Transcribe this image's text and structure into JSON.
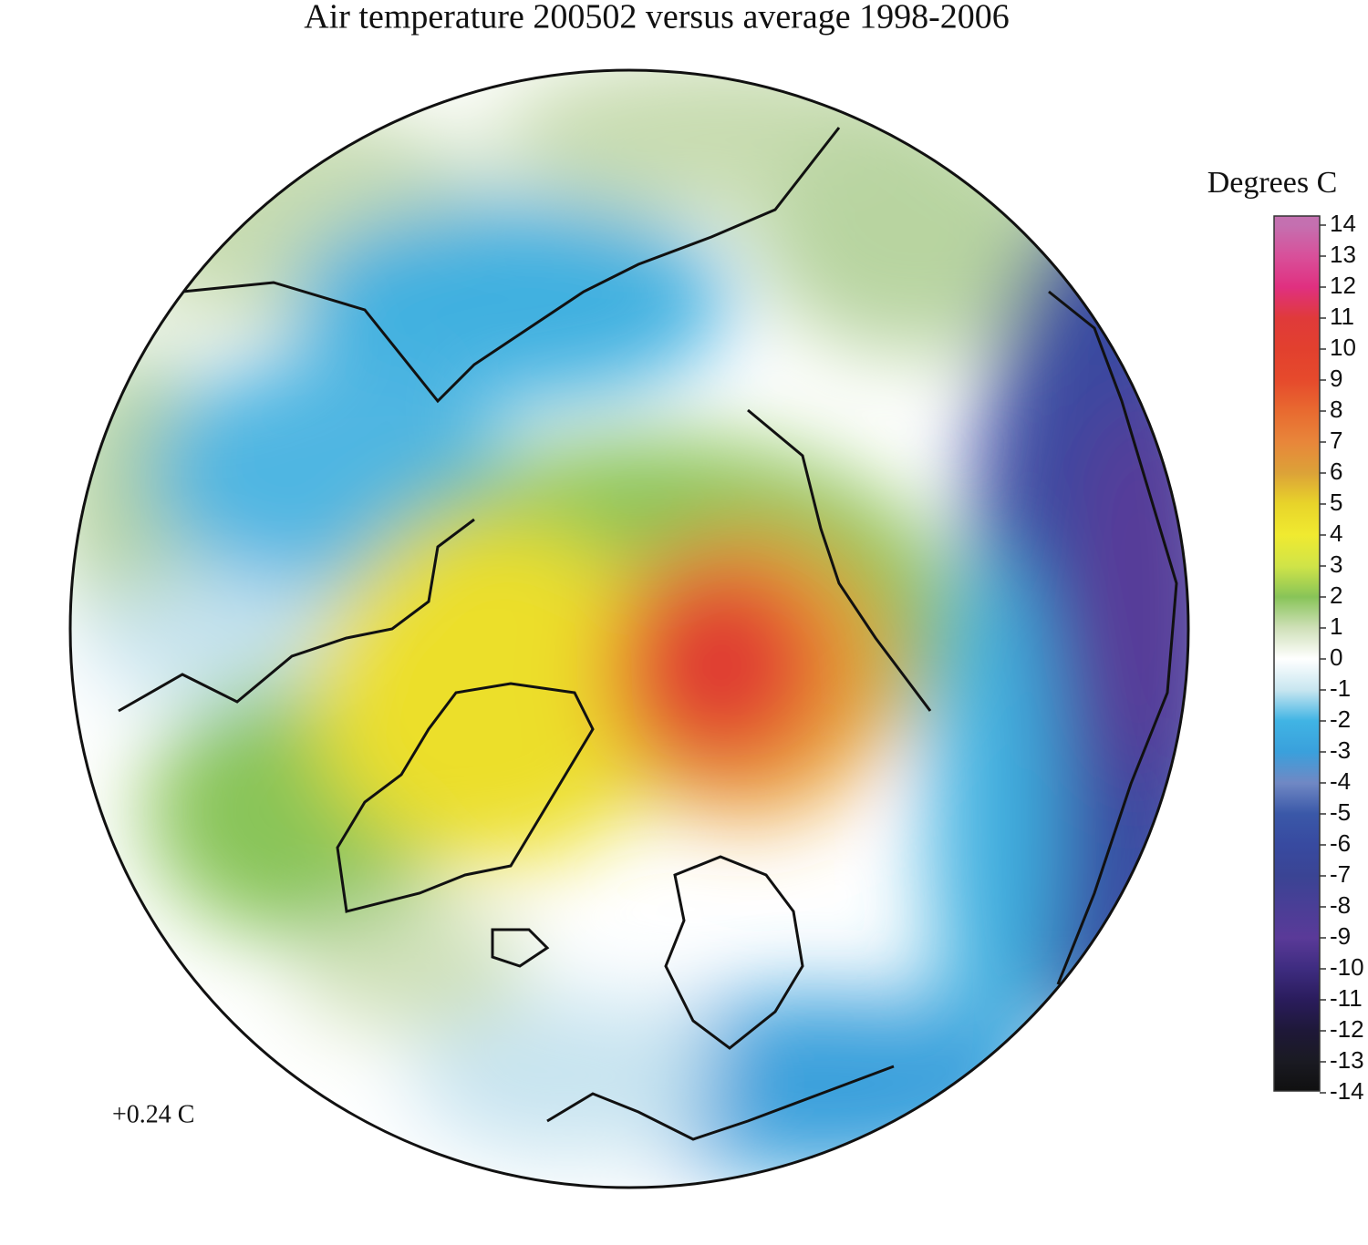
{
  "title": "Air temperature 200502 versus average 1998-2006",
  "annotation": "+0.24 C",
  "legend": {
    "title": "Degrees C",
    "ticks": [
      14,
      13,
      12,
      11,
      10,
      9,
      8,
      7,
      6,
      5,
      4,
      3,
      2,
      1,
      0,
      -1,
      -2,
      -3,
      -4,
      -5,
      -6,
      -7,
      -8,
      -9,
      -10,
      -11,
      -12,
      -13,
      -14
    ],
    "colors": [
      "#c470b0",
      "#d8509a",
      "#e03080",
      "#e03a3a",
      "#e2402e",
      "#e64a2c",
      "#e86a30",
      "#e8863a",
      "#dca238",
      "#e8d42a",
      "#f0ea30",
      "#d0e448",
      "#88c458",
      "#cfe0b8",
      "#ffffff",
      "#c8e6f0",
      "#40b4e4",
      "#3aa0dc",
      "#7088c4",
      "#3a58a8",
      "#384aa0",
      "#3a4494",
      "#4a3e96",
      "#5a3a98",
      "#3e2c80",
      "#2a1c5c",
      "#1e1838",
      "#1a1a22",
      "#101010"
    ]
  }
}
